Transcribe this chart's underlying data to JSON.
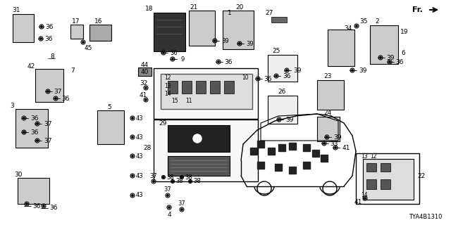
{
  "background_color": "#ffffff",
  "diagram_code": "TYA4B1310",
  "fig_w": 6.4,
  "fig_h": 3.2,
  "dpi": 100
}
